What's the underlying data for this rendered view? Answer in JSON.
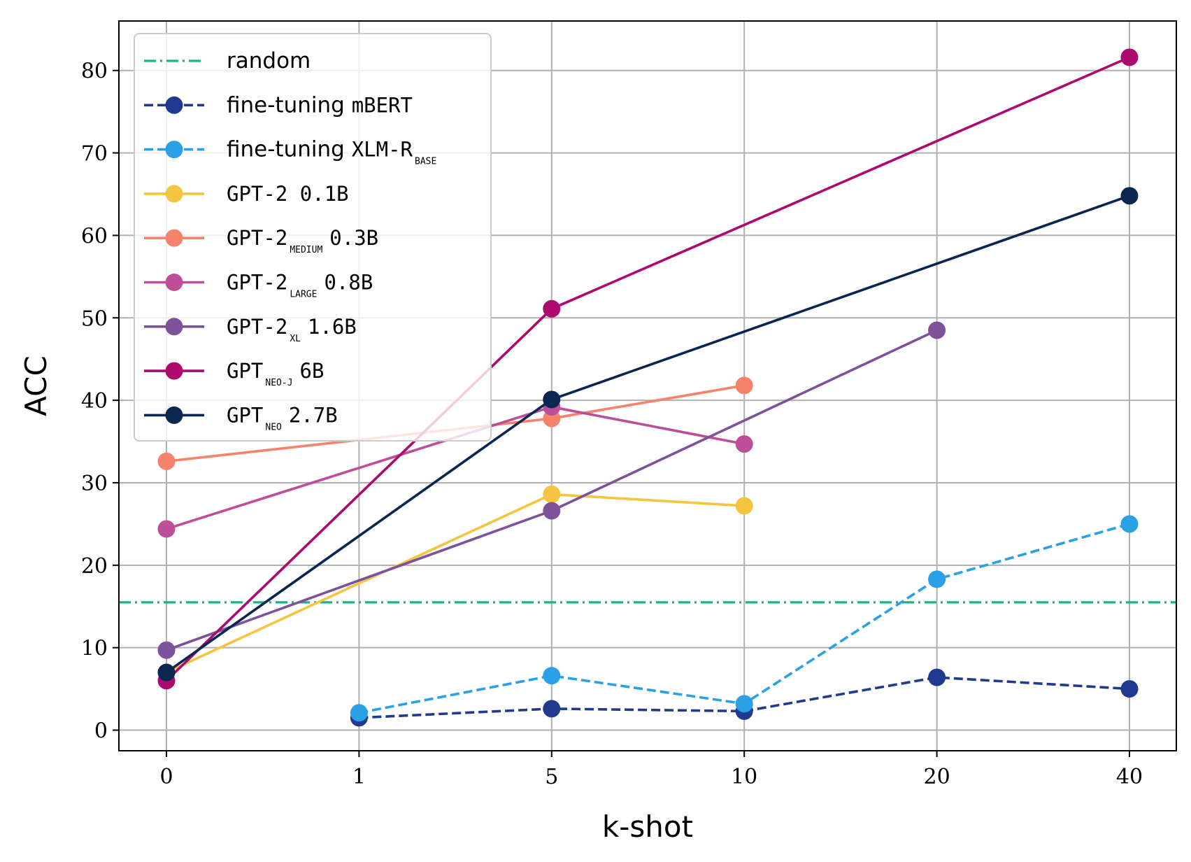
{
  "chart_data": {
    "type": "line",
    "xlabel": "k-shot",
    "ylabel": "ACC",
    "categories": [
      "0",
      "1",
      "5",
      "10",
      "20",
      "40"
    ],
    "yticks": [
      0,
      10,
      20,
      30,
      40,
      50,
      60,
      70,
      80
    ],
    "ylim": [
      -2.5,
      86
    ],
    "grid": true,
    "legend_position": "top-left",
    "random_baseline": {
      "name": "random",
      "value": 15.5,
      "color": "#1ab384"
    },
    "series": [
      {
        "name": "fine-tuning mBERT",
        "prefix": "fine-tuning",
        "model": "mBERT",
        "sub": "",
        "suffix": "",
        "color": "#1f3a8f",
        "dashed": true,
        "values": [
          null,
          1.5,
          2.6,
          2.3,
          6.4,
          5.0
        ]
      },
      {
        "name": "fine-tuning XLM-R BASE",
        "prefix": "fine-tuning",
        "model": "XLM-R",
        "sub": "BASE",
        "suffix": "",
        "color": "#2aa1e6",
        "dashed": true,
        "values": [
          null,
          2.1,
          6.6,
          3.2,
          18.3,
          25.0
        ]
      },
      {
        "name": "GPT-2 0.1B",
        "prefix": "",
        "model": "GPT-2",
        "sub": "",
        "suffix": "0.1B",
        "color": "#f5c542",
        "dashed": false,
        "values": [
          7.0,
          null,
          28.6,
          27.2,
          null,
          null
        ]
      },
      {
        "name": "GPT-2 MEDIUM 0.3B",
        "prefix": "",
        "model": "GPT-2",
        "sub": "MEDIUM",
        "suffix": "0.3B",
        "color": "#f5826a",
        "dashed": false,
        "values": [
          32.6,
          null,
          37.8,
          41.8,
          null,
          null
        ]
      },
      {
        "name": "GPT-2 LARGE 0.8B",
        "prefix": "",
        "model": "GPT-2",
        "sub": "LARGE",
        "suffix": "0.8B",
        "color": "#bd4f9a",
        "dashed": false,
        "values": [
          24.4,
          null,
          39.2,
          34.7,
          null,
          null
        ]
      },
      {
        "name": "GPT-2 XL 1.6B",
        "prefix": "",
        "model": "GPT-2",
        "sub": "XL",
        "suffix": "1.6B",
        "color": "#7e529b",
        "dashed": false,
        "values": [
          9.7,
          null,
          26.6,
          null,
          48.5,
          null
        ]
      },
      {
        "name": "GPT NEO-J 6B",
        "prefix": "",
        "model": "GPT",
        "sub": "NEO-J",
        "suffix": "6B",
        "color": "#ac0a6e",
        "dashed": false,
        "values": [
          6.0,
          null,
          51.1,
          null,
          null,
          81.6
        ]
      },
      {
        "name": "GPT NEO 2.7B",
        "prefix": "",
        "model": "GPT",
        "sub": "NEO",
        "suffix": "2.7B",
        "color": "#0c2652",
        "dashed": false,
        "values": [
          7.0,
          null,
          40.1,
          null,
          null,
          64.8
        ]
      }
    ]
  }
}
